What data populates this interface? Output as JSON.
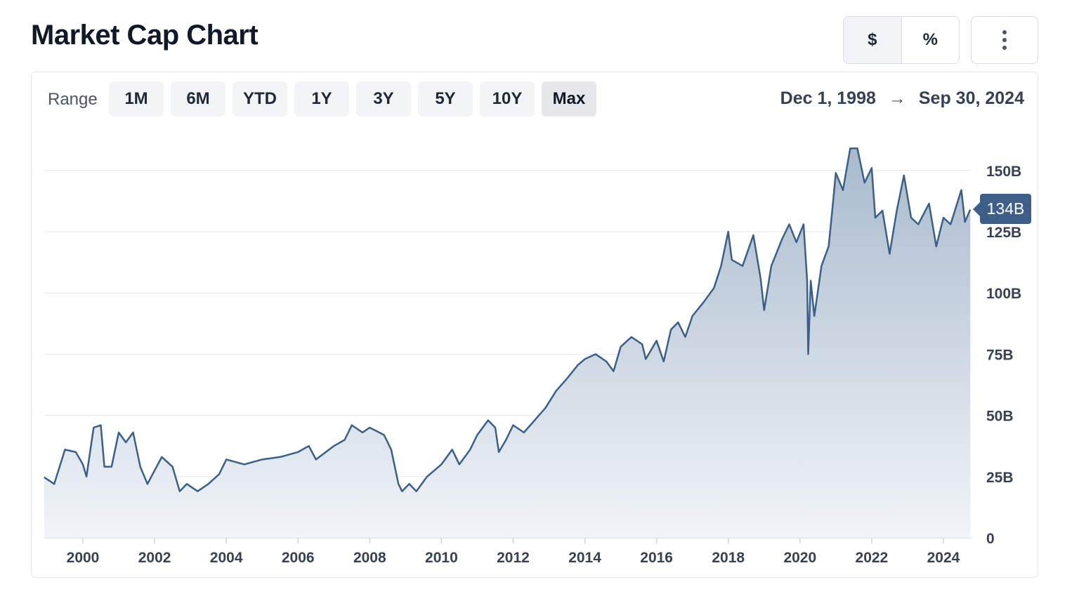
{
  "header": {
    "title": "Market Cap Chart"
  },
  "toggle": {
    "options": [
      "$",
      "%"
    ],
    "selected": "$"
  },
  "menu": {
    "icon": "kebab-menu-icon"
  },
  "range": {
    "label": "Range",
    "options": [
      "1M",
      "6M",
      "YTD",
      "1Y",
      "3Y",
      "5Y",
      "10Y",
      "Max"
    ],
    "selected": "Max",
    "start": "Dec 1, 1998",
    "arrow": "→",
    "end": "Sep 30, 2024"
  },
  "chart_data": {
    "type": "area",
    "title": "",
    "xlabel": "",
    "ylabel": "",
    "x_unit": "year",
    "xlim": [
      1998.92,
      2024.75
    ],
    "ylim": [
      0,
      162
    ],
    "x_ticks": [
      "2000",
      "2002",
      "2004",
      "2006",
      "2008",
      "2010",
      "2012",
      "2014",
      "2016",
      "2018",
      "2020",
      "2022",
      "2024"
    ],
    "y_ticks": [
      {
        "value": 0,
        "label": "0"
      },
      {
        "value": 25,
        "label": "25B"
      },
      {
        "value": 50,
        "label": "50B"
      },
      {
        "value": 75,
        "label": "75B"
      },
      {
        "value": 100,
        "label": "100B"
      },
      {
        "value": 125,
        "label": "125B"
      },
      {
        "value": 150,
        "label": "150B"
      }
    ],
    "grid": true,
    "y_axis_side": "right",
    "line_color": "#3b5f86",
    "fill_top_color": "#a9bacd",
    "fill_bottom_color": "#f1f4f8",
    "current_value": {
      "value": 134,
      "label": "134B"
    },
    "unit": "USD billions",
    "x": [
      1998.92,
      1999.2,
      1999.5,
      1999.8,
      2000.0,
      2000.1,
      2000.3,
      2000.5,
      2000.6,
      2000.8,
      2001.0,
      2001.2,
      2001.4,
      2001.6,
      2001.8,
      2002.0,
      2002.2,
      2002.5,
      2002.7,
      2002.9,
      2003.2,
      2003.5,
      2003.8,
      2004.0,
      2004.5,
      2005.0,
      2005.5,
      2006.0,
      2006.3,
      2006.5,
      2007.0,
      2007.3,
      2007.5,
      2007.8,
      2008.0,
      2008.4,
      2008.6,
      2008.8,
      2008.9,
      2009.1,
      2009.3,
      2009.6,
      2010.0,
      2010.3,
      2010.5,
      2010.8,
      2011.0,
      2011.3,
      2011.5,
      2011.6,
      2011.8,
      2012.0,
      2012.3,
      2012.6,
      2012.9,
      2013.2,
      2013.5,
      2013.8,
      2014.0,
      2014.3,
      2014.6,
      2014.8,
      2015.0,
      2015.3,
      2015.6,
      2015.7,
      2016.0,
      2016.2,
      2016.4,
      2016.6,
      2016.8,
      2017.0,
      2017.3,
      2017.6,
      2017.8,
      2018.0,
      2018.1,
      2018.4,
      2018.7,
      2018.9,
      2019.0,
      2019.2,
      2019.5,
      2019.7,
      2019.9,
      2020.1,
      2020.2,
      2020.23,
      2020.3,
      2020.4,
      2020.6,
      2020.8,
      2020.9,
      2021.0,
      2021.2,
      2021.4,
      2021.6,
      2021.8,
      2022.0,
      2022.1,
      2022.3,
      2022.5,
      2022.7,
      2022.9,
      2023.1,
      2023.3,
      2023.6,
      2023.8,
      2024.0,
      2024.2,
      2024.5,
      2024.6,
      2024.75
    ],
    "values": [
      24.7,
      22,
      36,
      35,
      30,
      25,
      45,
      46,
      29,
      29,
      43,
      39,
      43,
      29,
      22,
      27.5,
      33,
      29,
      19,
      22,
      19,
      22,
      26,
      32,
      30,
      32,
      33,
      35,
      37.5,
      32,
      37.5,
      40,
      46,
      43,
      45,
      42,
      36,
      22,
      19,
      22,
      19,
      25,
      30,
      36,
      30,
      36,
      42,
      48,
      45,
      35,
      40,
      46,
      43,
      48,
      53,
      60,
      65,
      70.5,
      73,
      75,
      72,
      68,
      78,
      82,
      79,
      73,
      80.5,
      72,
      85,
      88,
      82,
      90.6,
      96,
      102,
      111,
      125,
      113.5,
      111,
      123.6,
      106,
      93,
      111,
      122,
      128,
      120.7,
      128,
      105,
      75,
      105,
      90.6,
      111,
      119,
      133.6,
      149,
      142,
      159,
      159,
      145,
      151,
      130.7,
      133.6,
      116,
      133.6,
      148,
      130.7,
      128,
      136.5,
      119,
      130.7,
      128,
      142,
      129,
      134
    ]
  }
}
